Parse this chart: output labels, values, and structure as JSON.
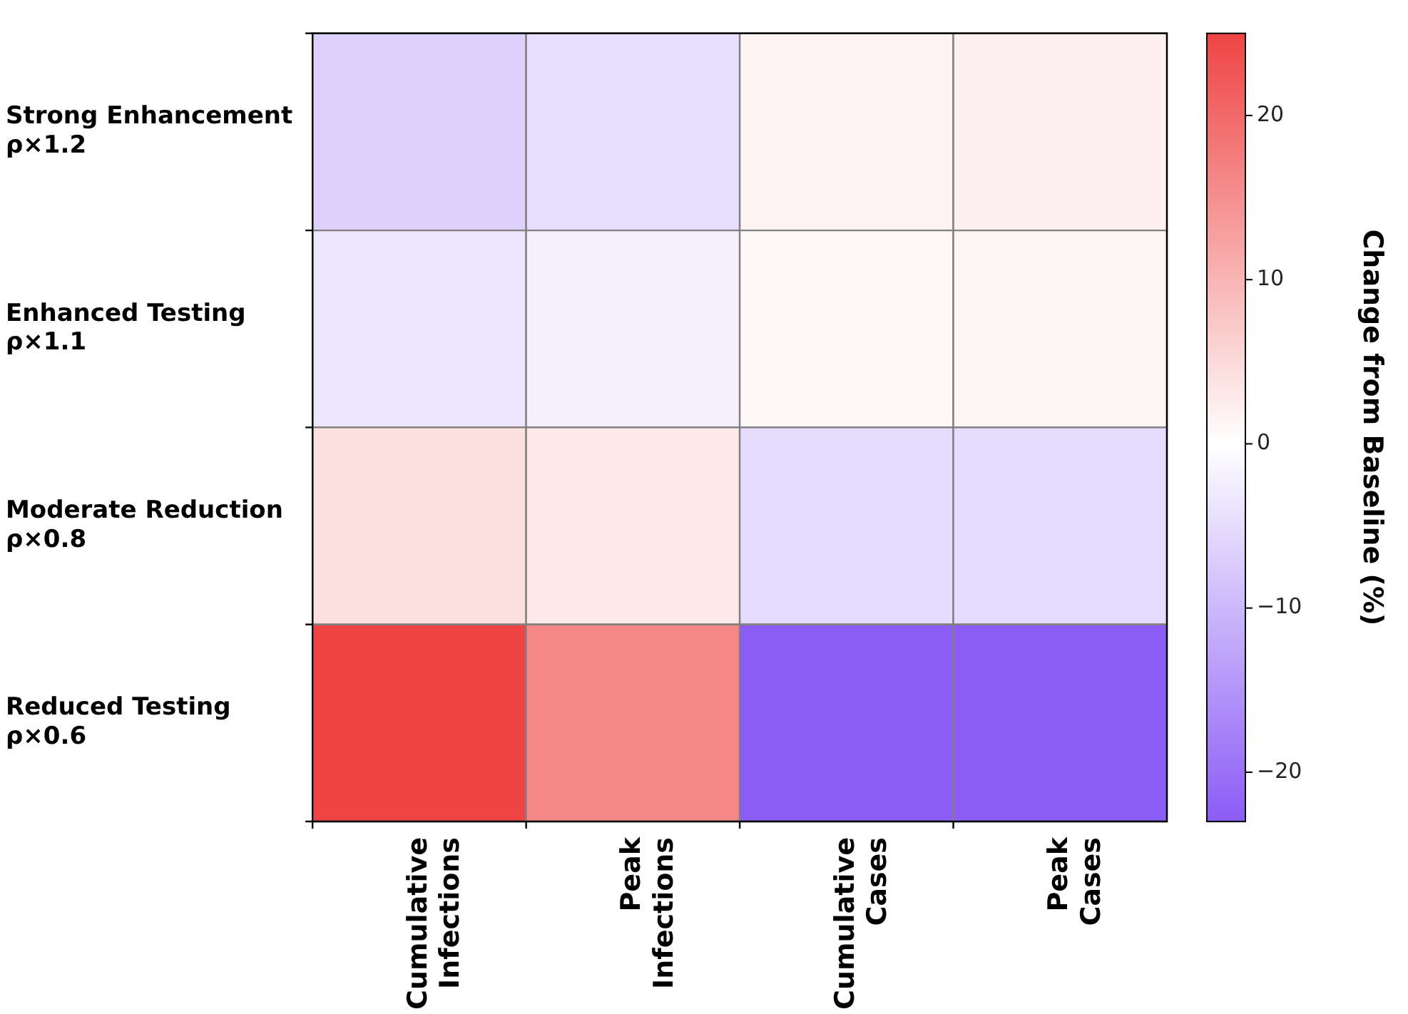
{
  "chart_data": {
    "type": "heatmap",
    "categories": [
      "Cumulative\nInfections",
      "Peak\nInfections",
      "Cumulative\nCases",
      "Peak\nCases"
    ],
    "y_categories": [
      "Strong Enhancement\nρ×1.2",
      "Enhanced Testing\nρ×1.1",
      "Moderate Reduction\nρ×0.8",
      "Reduced Testing\nρ×0.6"
    ],
    "cells": [
      [
        -6.6,
        -4.6,
        1.6,
        2.0
      ],
      [
        -3.5,
        -2.1,
        1.0,
        1.3
      ],
      [
        4.2,
        3.0,
        -5.0,
        -5.0
      ],
      [
        25,
        16,
        -23,
        -23
      ]
    ],
    "clim": [
      -23,
      25
    ],
    "cticks": [
      -20,
      -10,
      0,
      10,
      20
    ],
    "clabel": "Change from Baseline (%)"
  }
}
